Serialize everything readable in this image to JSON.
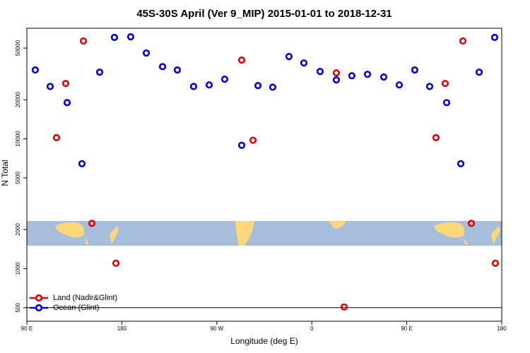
{
  "chart_data": {
    "type": "scatter",
    "title": "45S-30S April (Ver 9_MIP)   2015-01-01 to 2018-12-31",
    "x_label": "Longitude (deg E)",
    "y_label": "N Total",
    "xlim": [
      90,
      540
    ],
    "xticks": [
      {
        "value": 90,
        "label": "90 E"
      },
      {
        "value": 180,
        "label": "180"
      },
      {
        "value": 270,
        "label": "90 W"
      },
      {
        "value": 360,
        "label": "0"
      },
      {
        "value": 450,
        "label": "90 E"
      },
      {
        "value": 540,
        "label": "180"
      }
    ],
    "ylim": [
      393,
      71100
    ],
    "log_y": true,
    "yticks": [
      500,
      1000,
      2000,
      5000,
      10000,
      20000,
      50000
    ],
    "reference_line": 500,
    "legend": "bottom-left",
    "series": [
      {
        "name": "Land (Nadir&Glint)",
        "color": "#e00000",
        "x": [
          118.1,
          126.8,
          143.6,
          151.6,
          174.4,
          293.6,
          304.3,
          383.3,
          390.7,
          477.7,
          486.4,
          503.2,
          511.2,
          534.0
        ],
        "values": [
          10200,
          26700,
          56700,
          2230,
          1100,
          40400,
          9740,
          32200,
          506,
          10200,
          26700,
          56700,
          2230,
          1100
        ]
      },
      {
        "name": "Ocean (Glint)",
        "color": "#0000dd",
        "x": [
          98.0,
          112.1,
          128.2,
          142.2,
          159.0,
          173.0,
          188.4,
          203.2,
          218.6,
          232.6,
          248.0,
          262.8,
          277.5,
          293.6,
          309.0,
          323.0,
          338.4,
          352.5,
          367.9,
          383.3,
          398.0,
          412.8,
          428.2,
          442.9,
          457.6,
          471.7,
          487.8,
          501.2,
          518.6,
          533.3
        ],
        "values": [
          33900,
          25300,
          19000,
          6430,
          32600,
          60400,
          61100,
          45800,
          36000,
          33900,
          25300,
          26000,
          28800,
          8920,
          25700,
          25000,
          43000,
          38400,
          33000,
          28400,
          30600,
          31400,
          29900,
          26000,
          33900,
          25300,
          19000,
          6430,
          32600,
          60400
        ]
      }
    ]
  }
}
